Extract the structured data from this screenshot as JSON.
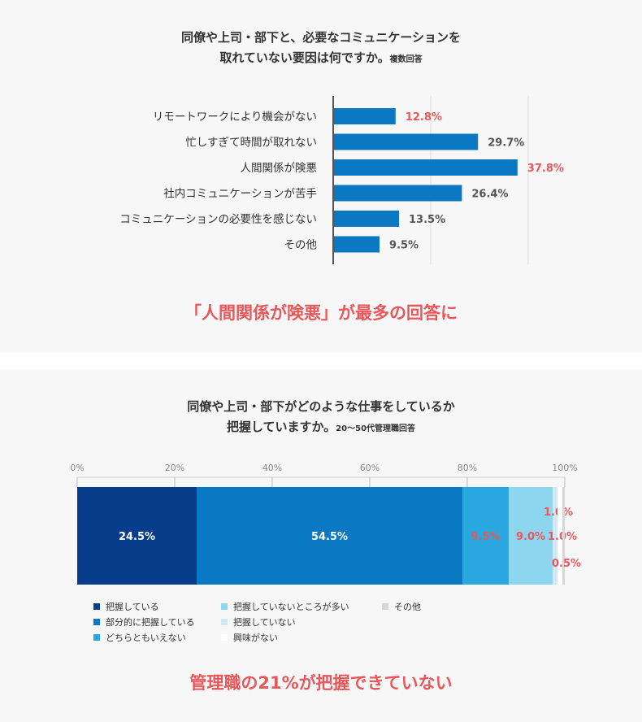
{
  "colors": {
    "bar": "#0a78c2",
    "highlight": "#e8585a",
    "text": "#333333",
    "grid": "#dddddd",
    "axis": "#555555"
  },
  "section1": {
    "title_line1": "同僚や上司・部下と、必要なコミュニケーションを",
    "title_line2": "取れていない要因は何ですか。",
    "title_note": "複数回答",
    "conclusion": "「人間関係が険悪」が最多の回答に"
  },
  "section2": {
    "title_line1": "同僚や上司・部下がどのような仕事をしているか",
    "title_line2": "把握していますか。",
    "title_note": "20〜50代管理職回答",
    "conclusion": "管理職の21%が把握できていない"
  },
  "chart_data": [
    {
      "type": "bar",
      "orientation": "horizontal",
      "categories": [
        "リモートワークにより機会がない",
        "忙しすぎて時間が取れない",
        "人間関係が険悪",
        "社内コミュニケーションが苦手",
        "コミュニケーションの必要性を感じない",
        "その他"
      ],
      "values": [
        12.8,
        29.7,
        37.8,
        26.4,
        13.5,
        9.5
      ],
      "value_labels": [
        "12.8%",
        "29.7%",
        "37.8%",
        "26.4%",
        "13.5%",
        "9.5%"
      ],
      "highlighted": [
        true,
        false,
        true,
        false,
        false,
        false
      ],
      "xlim": [
        0,
        50
      ],
      "grid": true
    },
    {
      "type": "bar",
      "orientation": "horizontal-stacked-100",
      "ticks": [
        "0%",
        "20%",
        "40%",
        "60%",
        "80%",
        "100%"
      ],
      "series": [
        {
          "name": "把握している",
          "value": 24.5,
          "label": "24.5%",
          "color": "#083d8c"
        },
        {
          "name": "部分的に把握している",
          "value": 54.5,
          "label": "54.5%",
          "color": "#0a78c2"
        },
        {
          "name": "どちらともいえない",
          "value": 9.5,
          "label": "9.5%",
          "color": "#29a8e0"
        },
        {
          "name": "把握していないところが多い",
          "value": 9.0,
          "label": "9.0%",
          "color": "#8dd6f0"
        },
        {
          "name": "把握していない",
          "value": 1.0,
          "label": "1.0%",
          "color": "#cdebf7"
        },
        {
          "name": "興味がない",
          "value": 1.0,
          "label": "1.0%",
          "color": "#ffffff"
        },
        {
          "name": "その他",
          "value": 0.5,
          "label": "0.5%",
          "color": "#d6d6d6"
        }
      ],
      "xlim": [
        0,
        100
      ],
      "grid": true,
      "legend_position": "bottom"
    }
  ]
}
